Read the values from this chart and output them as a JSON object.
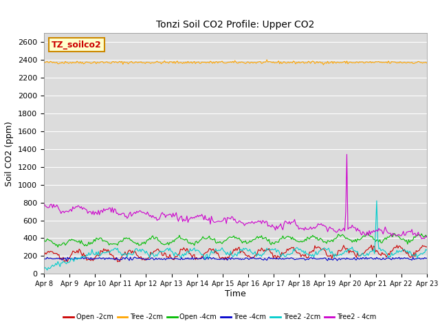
{
  "title": "Tonzi Soil CO2 Profile: Upper CO2",
  "ylabel": "Soil CO2 (ppm)",
  "xlabel": "Time",
  "annotation_text": "TZ_soilco2",
  "annotation_bg": "#FFFFCC",
  "annotation_border": "#CC8800",
  "legend_entries": [
    "Open -2cm",
    "Tree -2cm",
    "Open -4cm",
    "Tree -4cm",
    "Tree2 -2cm",
    "Tree2 - 4cm"
  ],
  "legend_colors": [
    "#CC0000",
    "#FFA500",
    "#00BB00",
    "#0000CC",
    "#00CCCC",
    "#CC00CC"
  ],
  "ylim": [
    0,
    2700
  ],
  "yticks": [
    0,
    200,
    400,
    600,
    800,
    1000,
    1200,
    1400,
    1600,
    1800,
    2000,
    2200,
    2400,
    2600
  ],
  "num_points": 360,
  "date_start": 8,
  "date_end": 23,
  "bg_color": "#DCDCDC"
}
